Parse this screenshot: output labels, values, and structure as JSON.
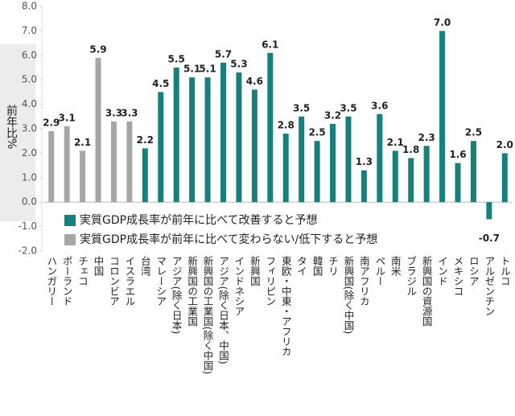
{
  "chart_data": {
    "type": "bar",
    "y_label": "前年比%",
    "categories": [
      "ハンガリー",
      "ポーランド",
      "チェコ",
      "中国",
      "コロンビア",
      "イスラエル",
      "台湾",
      "マレーシア",
      "アジア(除く日本)",
      "新興国の工業国",
      "新興国の工業国(除く中国)",
      "アジア(除く日本、中国)",
      "インドネシア",
      "新興国",
      "フィリピン",
      "東欧・中東・アフリカ",
      "タイ",
      "韓国",
      "チリ",
      "新興国(除く中国)",
      "南アフリカ",
      "ペルー",
      "南米",
      "ブラジル",
      "新興国の資源国",
      "インド",
      "メキシコ",
      "ロシア",
      "アルゼンチン",
      "トルコ"
    ],
    "series": [
      {
        "name": "実質GDP成長率が前年に比べて改善すると予想",
        "color": "#16807a",
        "values": [
          null,
          null,
          null,
          null,
          null,
          null,
          2.2,
          4.5,
          5.5,
          5.1,
          5.1,
          5.7,
          5.3,
          4.6,
          6.1,
          2.8,
          3.5,
          2.5,
          3.2,
          3.5,
          1.3,
          3.6,
          2.1,
          1.8,
          2.3,
          7,
          1.6,
          2.5,
          -0.7,
          2
        ],
        "value_labels": [
          null,
          null,
          null,
          null,
          null,
          null,
          "2.2",
          "4.5",
          "5.5",
          "5.1",
          "5.1",
          "5.7",
          "5.3",
          "4.6",
          "6.1",
          "2.8",
          "3.5",
          "2.5",
          "3.2",
          "3.5",
          "1.3",
          "3.6",
          "2.1",
          "1.8",
          "2.3",
          "7.0",
          "1.6",
          "2.5",
          "-0.7",
          "2.0"
        ]
      },
      {
        "name": "実質GDP成長率が前年に比べて変わらない/低下すると予想",
        "color": "#a6a6a6",
        "values": [
          2.9,
          3.1,
          2.1,
          5.9,
          3.3,
          3.3,
          null,
          null,
          null,
          null,
          null,
          null,
          null,
          null,
          null,
          null,
          null,
          null,
          null,
          null,
          null,
          null,
          null,
          null,
          null,
          null,
          null,
          null,
          null,
          null
        ]
      }
    ],
    "ylim": [
      -2,
      8
    ],
    "yticks": [
      {
        "value": -2,
        "label": "-2.0"
      },
      {
        "value": -1,
        "label": "-1.0"
      },
      {
        "value": 0,
        "label": "0.0"
      },
      {
        "value": 1,
        "label": "1.0"
      },
      {
        "value": 2,
        "label": "2.0"
      },
      {
        "value": 3,
        "label": "3.0"
      },
      {
        "value": 4,
        "label": "4.0"
      },
      {
        "value": 5,
        "label": "5.0"
      },
      {
        "value": 6,
        "label": "6.0"
      },
      {
        "value": 7,
        "label": "7.0"
      },
      {
        "value": 8,
        "label": "8.0"
      }
    ]
  }
}
